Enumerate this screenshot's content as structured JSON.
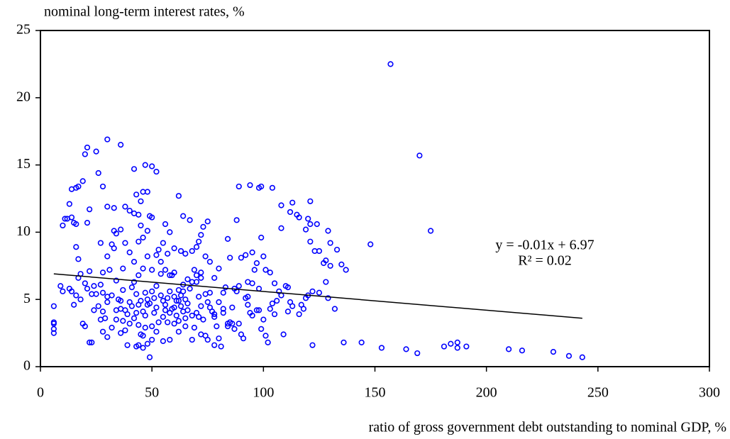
{
  "chart_data": {
    "type": "scatter",
    "y_label": "nominal long-term interest rates, %",
    "x_label": "ratio of gross government debt outstanding to nominal GDP, %",
    "xlim": [
      0,
      300
    ],
    "xticks": [
      0,
      50,
      100,
      150,
      200,
      250,
      300
    ],
    "ylim": [
      0,
      25
    ],
    "yticks": [
      0,
      5,
      10,
      15,
      20,
      25
    ],
    "series": [
      {
        "color": "#0000ff",
        "x": [
          157,
          170,
          175,
          148,
          30,
          36,
          21,
          25,
          20,
          47,
          50,
          52,
          42,
          26,
          19,
          14,
          16,
          17,
          28,
          94,
          89,
          98,
          99,
          104,
          108,
          113,
          121,
          116,
          121,
          124,
          129,
          130,
          133,
          135,
          137,
          132,
          119,
          121,
          136,
          144,
          153,
          164,
          169,
          181,
          184,
          187,
          187,
          191,
          210,
          216,
          230,
          237,
          243,
          122,
          6,
          6,
          6,
          6,
          6,
          9,
          10,
          10,
          11,
          12,
          13,
          14,
          15,
          16,
          16,
          17,
          17,
          18,
          20,
          21,
          19,
          20,
          22,
          23,
          25,
          27,
          28,
          29,
          30,
          31,
          32,
          33,
          34,
          35,
          36,
          37,
          38,
          39,
          40,
          41,
          42,
          43,
          44,
          45,
          46,
          47,
          48,
          49,
          50,
          51,
          52,
          53,
          54,
          55,
          56,
          57,
          58,
          59,
          60,
          61,
          62,
          63,
          64,
          65,
          66,
          67,
          68,
          69,
          70,
          71,
          72,
          73,
          74,
          75,
          76,
          77,
          78,
          79,
          80,
          81,
          82,
          83,
          84,
          85,
          86,
          87,
          88,
          89,
          90,
          91,
          92,
          93,
          94,
          95,
          96,
          97,
          98,
          99,
          100,
          101,
          102,
          103,
          104,
          105,
          106,
          107,
          108,
          109,
          110,
          111,
          112,
          113,
          116,
          117,
          118,
          119,
          120,
          122,
          125,
          128,
          129,
          30,
          33,
          38,
          40,
          42,
          44,
          43,
          45,
          46,
          48,
          49,
          50,
          45,
          36,
          33,
          34,
          48,
          44,
          46,
          55,
          56,
          58,
          62,
          64,
          67,
          71,
          72,
          73,
          75,
          70,
          68,
          60,
          57,
          52,
          48,
          40,
          38,
          37,
          30,
          27,
          28,
          24,
          22,
          21,
          22,
          88,
          85,
          80,
          84,
          90,
          92,
          95,
          99,
          100,
          97,
          95,
          93,
          89,
          87,
          82,
          78,
          76,
          74,
          72,
          65,
          63,
          60,
          58,
          56,
          54,
          50,
          46,
          44,
          42,
          108,
          112,
          115,
          120,
          123,
          125,
          127,
          128,
          130,
          111,
          105,
          103,
          101,
          98,
          93,
          50,
          48,
          46,
          44,
          43,
          47,
          52,
          55,
          58,
          62,
          65,
          68,
          69,
          72,
          75,
          78,
          84,
          86,
          30,
          32,
          34,
          36,
          28,
          27,
          26,
          24,
          23,
          13,
          15,
          16,
          18,
          14,
          60,
          62,
          64,
          66,
          68,
          62,
          60,
          58,
          56,
          54,
          52,
          50,
          48,
          46,
          44,
          42,
          40,
          38,
          36,
          34,
          32,
          30,
          28,
          64,
          66,
          70,
          72,
          74,
          76,
          78,
          80,
          82,
          70,
          71,
          63,
          65,
          61,
          59,
          57,
          55,
          53,
          51,
          49,
          47,
          45,
          43,
          41,
          39,
          37
        ],
        "y": [
          22.5,
          15.7,
          10.1,
          9.1,
          16.9,
          16.5,
          16.3,
          16,
          15.8,
          15,
          14.9,
          14.5,
          14.7,
          14.4,
          13.8,
          13.2,
          13.3,
          13.4,
          13.4,
          13.5,
          13.4,
          13.3,
          13.4,
          13.3,
          12,
          12.2,
          12.3,
          11.1,
          10.6,
          10.6,
          10.1,
          9.2,
          8.7,
          7.6,
          7.2,
          4.3,
          10.2,
          9.3,
          1.8,
          1.8,
          1.4,
          1.3,
          1.0,
          1.5,
          1.7,
          1.8,
          1.4,
          1.5,
          1.3,
          1.2,
          1.1,
          0.8,
          0.7,
          1.6,
          4.5,
          3.3,
          3.2,
          2.8,
          2.5,
          6,
          5.6,
          10.5,
          11,
          11,
          12.1,
          11.1,
          10.7,
          10.6,
          8.9,
          8,
          6.6,
          6.9,
          6.2,
          5.8,
          3.2,
          3,
          1.8,
          1.8,
          5.4,
          6.1,
          4.1,
          3.6,
          5.2,
          7.2,
          9.1,
          8.8,
          6.4,
          5.0,
          4.3,
          3.4,
          2.7,
          1.6,
          4.8,
          5.9,
          6.3,
          4.0,
          3.1,
          2.4,
          1.4,
          5.5,
          4.6,
          0.7,
          3.0,
          5.1,
          6.0,
          8.7,
          7.8,
          4.9,
          4.2,
          3.3,
          5.6,
          6.8,
          4.4,
          3.8,
          4.9,
          5.3,
          4.1,
          3.6,
          4.7,
          5.8,
          6.3,
          7.2,
          6.8,
          5.2,
          4.5,
          3.5,
          2.3,
          4.8,
          5.5,
          4.1,
          3.7,
          3.0,
          2.1,
          1.5,
          4.3,
          5.9,
          3.2,
          3.3,
          4.4,
          2.8,
          5.6,
          3.2,
          2.4,
          2.1,
          5.1,
          4.6,
          4.0,
          3.8,
          7.2,
          4.2,
          4.2,
          2.8,
          3.5,
          2.3,
          1.8,
          4.3,
          4.7,
          3.9,
          4.9,
          5.6,
          5.3,
          2.4,
          6.0,
          4.1,
          4.8,
          4.5,
          3.9,
          4.6,
          4.3,
          5.1,
          5.3,
          5.6,
          5.5,
          6.3,
          5.1,
          11.9,
          11.8,
          11.9,
          11.6,
          11.4,
          11.3,
          12.8,
          12.3,
          13.0,
          13.0,
          11.2,
          11.1,
          10.5,
          10.2,
          10.1,
          9.9,
          10.1,
          9.3,
          9.6,
          9.2,
          10.6,
          10.0,
          12.7,
          11.2,
          10.9,
          9.3,
          9.8,
          10.4,
          10.8,
          8.9,
          8.6,
          8.8,
          8.4,
          8.3,
          8.2,
          8.5,
          9.2,
          7.3,
          8.2,
          9.2,
          7.0,
          6.0,
          7.1,
          10.7,
          11.7,
          10.9,
          8.1,
          7.3,
          9.5,
          8.1,
          8.3,
          8.5,
          9.6,
          8.2,
          7.7,
          6.2,
          6.3,
          6.0,
          5.8,
          5.5,
          6.6,
          7.8,
          8.2,
          7.0,
          8.4,
          8.6,
          7.0,
          6.8,
          7.2,
          6.9,
          7.2,
          7.3,
          6.8,
          7.8,
          10.3,
          11.5,
          11.3,
          11.0,
          8.6,
          8.6,
          7.7,
          7.9,
          7.5,
          5.9,
          6.2,
          7.0,
          7.2,
          5.8,
          5.2,
          2.0,
          1.7,
          2.3,
          1.6,
          1.5,
          2.9,
          2.6,
          1.9,
          2.0,
          2.6,
          3.0,
          2.0,
          2.9,
          2.4,
          2.0,
          1.6,
          3.0,
          3.2,
          2.2,
          2.9,
          3.5,
          2.5,
          2.6,
          3.5,
          4.5,
          4.2,
          5.4,
          5.8,
          4.6,
          5.3,
          5.0,
          5.6,
          5.2,
          5.7,
          5.6,
          4.2,
          3.8,
          3.4,
          3.2,
          4.0,
          4.6,
          5.3,
          4.4,
          5.6,
          5.0,
          4.1,
          4.6,
          3.6,
          3.2,
          4.2,
          4.9,
          4.2,
          5.3,
          4.8,
          5.5,
          6.1,
          6.5,
          6.3,
          6.6,
          5.4,
          4.4,
          3.9,
          4.8,
          4.0,
          4.0,
          3.7,
          4.5,
          5.0,
          4.9,
          4.3,
          5.1,
          3.7,
          3.3,
          4.0,
          4.7,
          3.8,
          4.9,
          5.4,
          4.5,
          3.9,
          5.7
        ]
      }
    ],
    "trendline": {
      "color": "#000000",
      "x": [
        6,
        243
      ],
      "y": [
        6.9,
        3.6
      ]
    },
    "annotations": [
      "y = -0.01x + 6.97",
      "R² = 0.02"
    ]
  }
}
